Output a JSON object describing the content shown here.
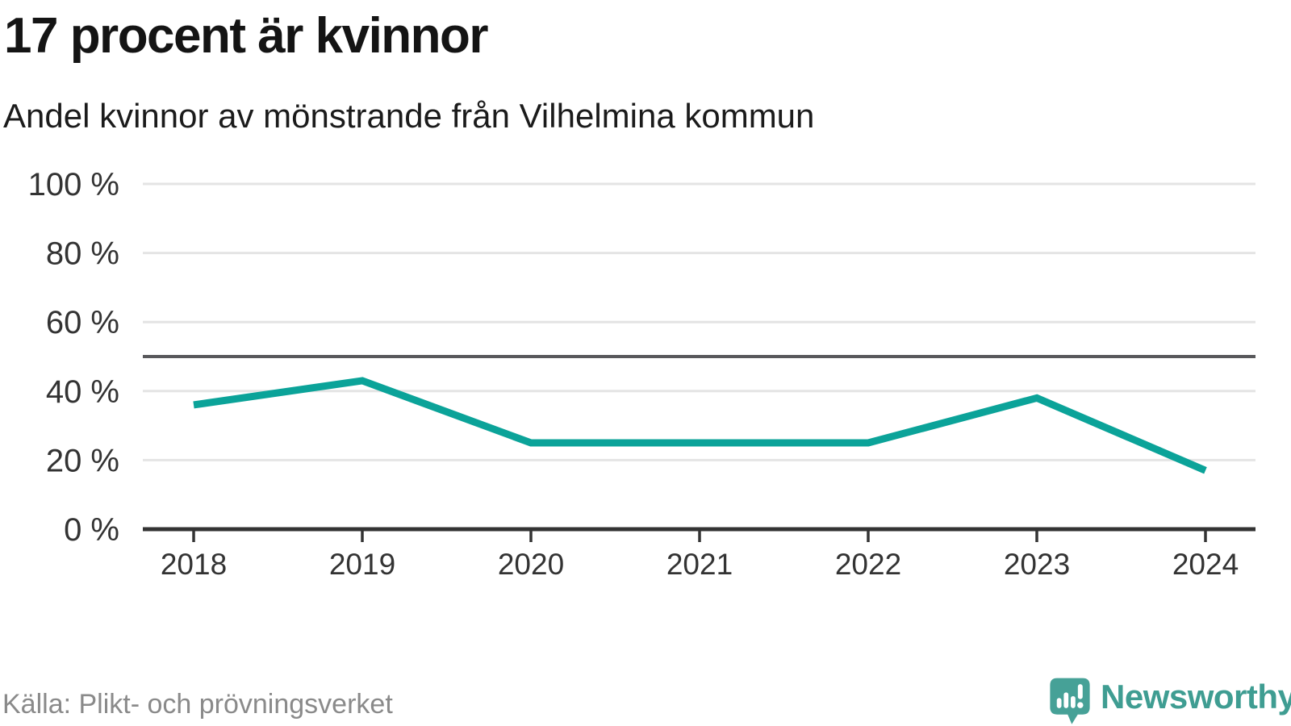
{
  "chart_data": {
    "type": "line",
    "title": "17 procent är kvinnor",
    "subtitle": "Andel kvinnor av mönstrande från Vilhelmina kommun",
    "x": [
      2018,
      2019,
      2020,
      2021,
      2022,
      2023,
      2024
    ],
    "x_tick_labels": [
      "2018",
      "2019",
      "2020",
      "2021",
      "2022",
      "2023",
      "2024"
    ],
    "series": [
      {
        "name": "Andel kvinnor",
        "values": [
          36,
          43,
          25,
          25,
          25,
          38,
          17
        ],
        "unit": "%"
      }
    ],
    "ylim": [
      0,
      100
    ],
    "y_ticks": [
      0,
      20,
      40,
      60,
      80,
      100
    ],
    "y_tick_labels": [
      "0 %",
      "20 %",
      "40 %",
      "60 %",
      "80 %",
      "100 %"
    ],
    "reference_line": {
      "value": 50
    },
    "grid": "horizontal",
    "legend": "none",
    "colors": {
      "line": "#0ba399",
      "grid": "#e4e4e4",
      "reference": "#58585b",
      "axis": "#333333",
      "tick_text": "#333333"
    }
  },
  "footer": {
    "source": "Källa: Plikt- och prövningsverket",
    "brand_name": "Newsworthy",
    "logo_icon": "newsworthy-speech-bubble-bar-chart-icon",
    "logo_color": "#46a197",
    "wordmark_color": "#3f9d92"
  }
}
